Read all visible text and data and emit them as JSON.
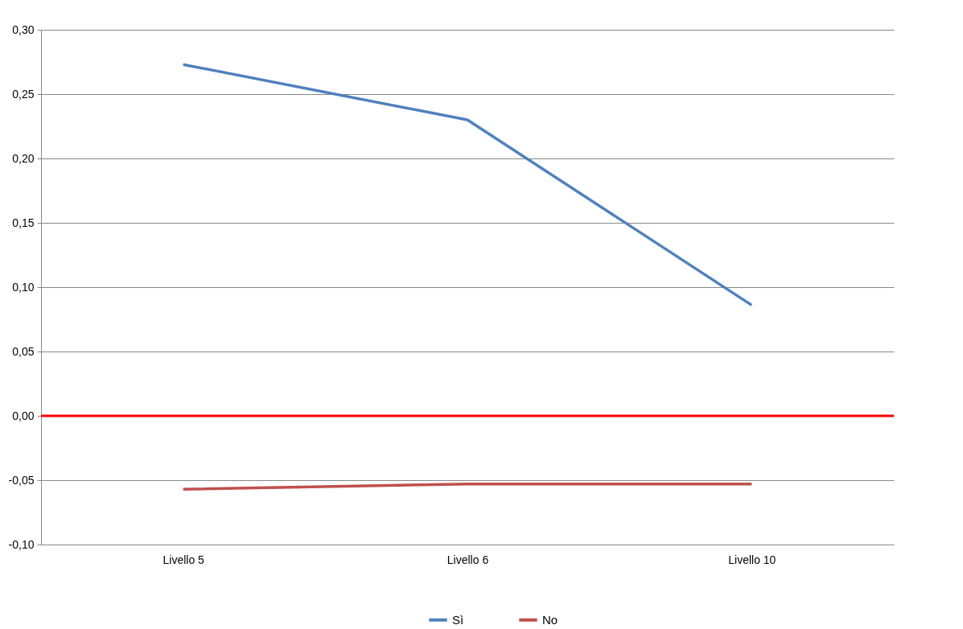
{
  "chart_data": {
    "type": "line",
    "categories": [
      "Livello 5",
      "Livello 6",
      "Livello 10"
    ],
    "series": [
      {
        "name": "Sì",
        "color": "#4f81bd",
        "values": [
          0.273,
          0.23,
          0.086
        ]
      },
      {
        "name": "No",
        "color": "#c0504d",
        "values": [
          -0.057,
          -0.053,
          -0.053
        ]
      }
    ],
    "ylim": [
      -0.1,
      0.3
    ],
    "yticks": [
      {
        "value": -0.1,
        "label": "-0,10"
      },
      {
        "value": -0.05,
        "label": "-0,05"
      },
      {
        "value": 0.0,
        "label": "0,00"
      },
      {
        "value": 0.05,
        "label": "0,05"
      },
      {
        "value": 0.1,
        "label": "0,10"
      },
      {
        "value": 0.15,
        "label": "0,15"
      },
      {
        "value": 0.2,
        "label": "0,20"
      },
      {
        "value": 0.25,
        "label": "0,25"
      },
      {
        "value": 0.3,
        "label": "0,30"
      }
    ],
    "ref_lines": [
      {
        "axis": "y",
        "value": 0.0,
        "color": "#ff0000"
      }
    ],
    "grid": "y",
    "legend": "bottom",
    "marker": "none",
    "line_style": "solid"
  }
}
